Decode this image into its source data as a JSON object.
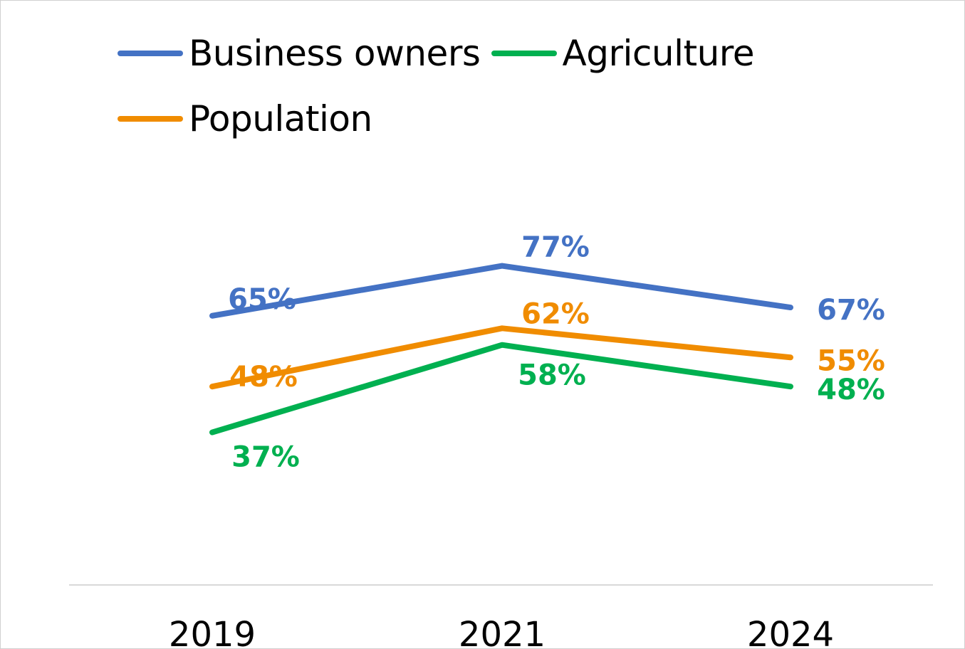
{
  "chart_data": {
    "type": "line",
    "title": "",
    "xlabel": "",
    "ylabel": "",
    "categories": [
      "2019",
      "2021",
      "2024"
    ],
    "ylim": [
      0,
      100
    ],
    "grid": false,
    "legend_position": "top-left",
    "series": [
      {
        "name": "Business owners",
        "color": "#4472C4",
        "values": [
          65,
          77,
          67
        ],
        "labels": [
          "65%",
          "77%",
          "67%"
        ]
      },
      {
        "name": "Agriculture",
        "color": "#00B050",
        "values": [
          37,
          58,
          48
        ],
        "labels": [
          "37%",
          "58%",
          "48%"
        ]
      },
      {
        "name": "Population",
        "color": "#F08C00",
        "values": [
          48,
          62,
          55
        ],
        "labels": [
          "48%",
          "62%",
          "55%"
        ]
      }
    ]
  }
}
